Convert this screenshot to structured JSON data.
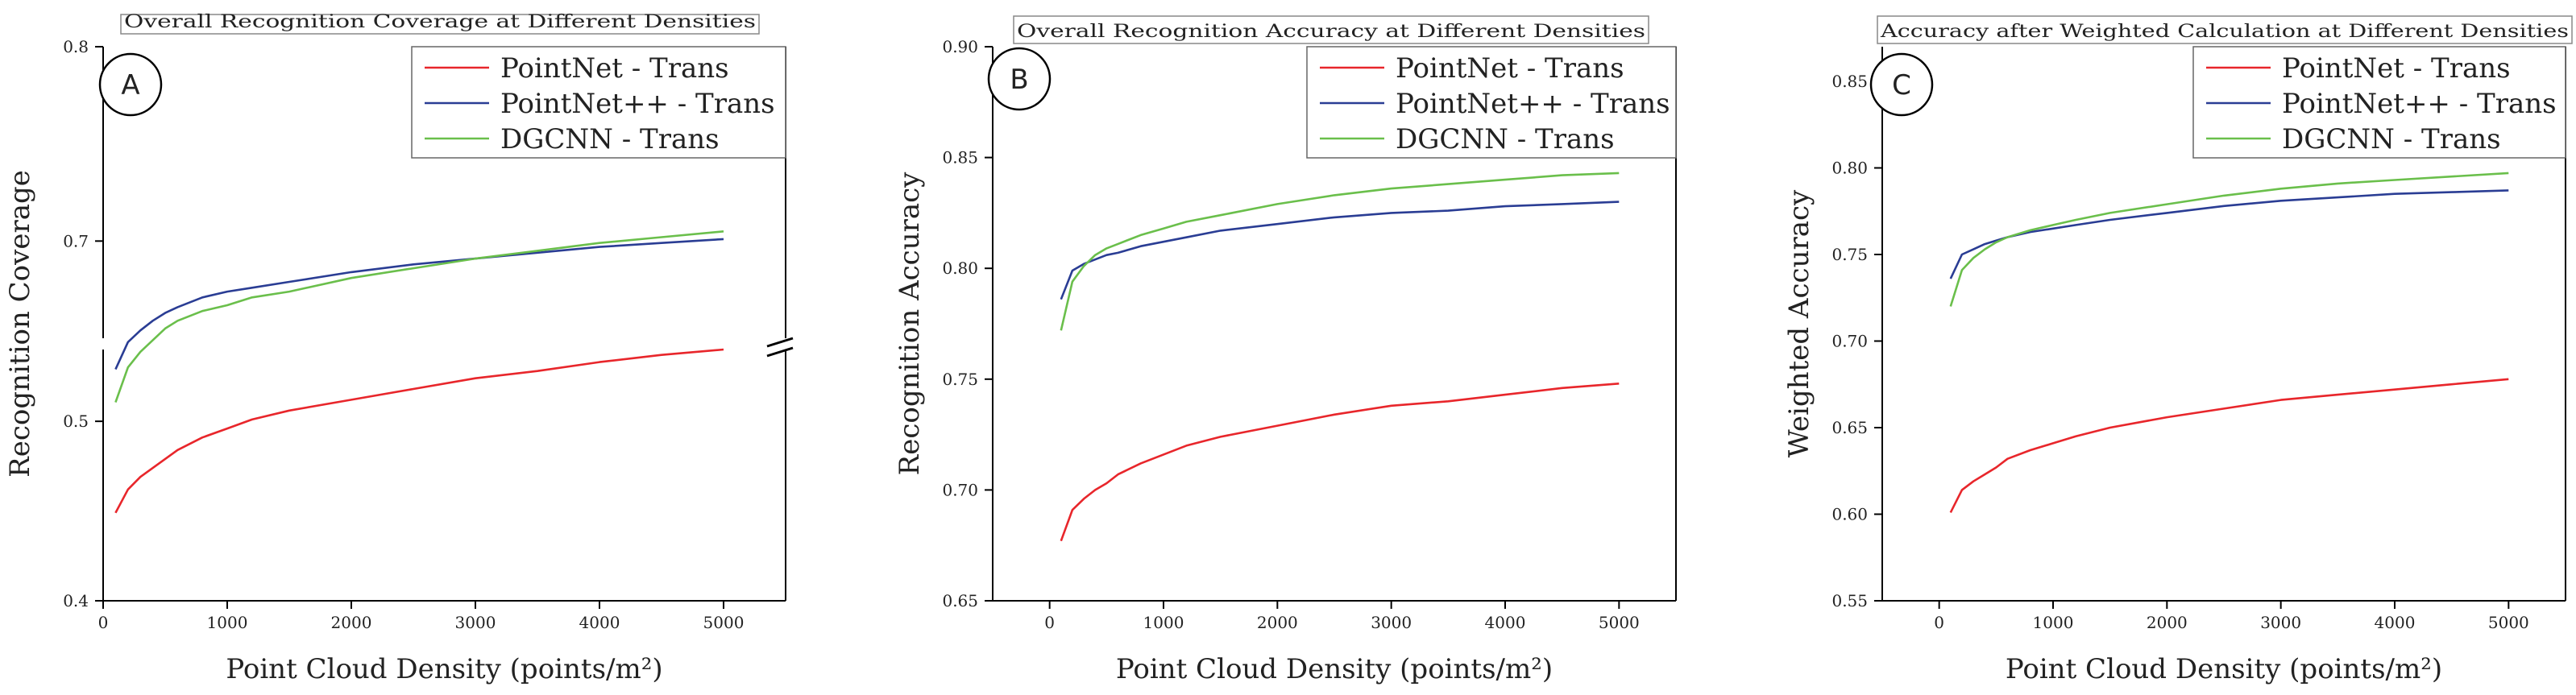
{
  "chart_data": [
    {
      "type": "line",
      "panel_letter": "A",
      "title": "Overall Recognition Coverage at Different Densities",
      "xlabel": "Point Cloud Density (points/m²)",
      "ylabel": "Recognition Coverage",
      "xlim": [
        0,
        5500
      ],
      "xticks": [
        0,
        1000,
        2000,
        3000,
        4000,
        5000
      ],
      "ylim": [
        0.4,
        0.8
      ],
      "axis_break": [
        0.54,
        0.65
      ],
      "yticks": [
        0.4,
        0.5,
        0.7,
        0.8
      ],
      "ytick_labels": [
        "0.4",
        "0.5",
        "0.7",
        "0.8"
      ],
      "legend_position": "top-right",
      "x": [
        100,
        200,
        300,
        400,
        500,
        600,
        800,
        1000,
        1200,
        1500,
        2000,
        2500,
        3000,
        3500,
        4000,
        4500,
        5000
      ],
      "series": [
        {
          "name": "PointNet - Trans",
          "color": "#e8262b",
          "values": [
            0.449,
            0.462,
            0.469,
            0.474,
            0.479,
            0.484,
            0.491,
            0.496,
            0.501,
            0.506,
            0.512,
            0.518,
            0.524,
            0.528,
            0.533,
            0.537,
            0.54
          ]
        },
        {
          "name": "PointNet++ - Trans",
          "color": "#2a3d94",
          "values": [
            0.634,
            0.648,
            0.654,
            0.659,
            0.663,
            0.666,
            0.671,
            0.674,
            0.676,
            0.679,
            0.684,
            0.688,
            0.691,
            0.694,
            0.697,
            0.699,
            0.701
          ]
        },
        {
          "name": "DGCNN - Trans",
          "color": "#6abf4b",
          "values": [
            0.617,
            0.635,
            0.643,
            0.649,
            0.655,
            0.659,
            0.664,
            0.667,
            0.671,
            0.674,
            0.681,
            0.686,
            0.691,
            0.695,
            0.699,
            0.702,
            0.705
          ]
        }
      ]
    },
    {
      "type": "line",
      "panel_letter": "B",
      "title": "Overall Recognition Accuracy at Different Densities",
      "xlabel": "Point Cloud Density (points/m²)",
      "ylabel": "Recognition Accuracy",
      "xlim": [
        -500,
        5500
      ],
      "xticks": [
        0,
        1000,
        2000,
        3000,
        4000,
        5000
      ],
      "ylim": [
        0.65,
        0.9
      ],
      "yticks": [
        0.65,
        0.7,
        0.75,
        0.8,
        0.85,
        0.9
      ],
      "ytick_labels": [
        "0.65",
        "0.70",
        "0.75",
        "0.80",
        "0.85",
        "0.90"
      ],
      "legend_position": "top-right",
      "x": [
        100,
        200,
        300,
        400,
        500,
        600,
        800,
        1000,
        1200,
        1500,
        2000,
        2500,
        3000,
        3500,
        4000,
        4500,
        5000
      ],
      "series": [
        {
          "name": "PointNet - Trans",
          "color": "#e8262b",
          "values": [
            0.677,
            0.691,
            0.696,
            0.7,
            0.703,
            0.707,
            0.712,
            0.716,
            0.72,
            0.724,
            0.729,
            0.734,
            0.738,
            0.74,
            0.743,
            0.746,
            0.748
          ]
        },
        {
          "name": "PointNet++ - Trans",
          "color": "#2a3d94",
          "values": [
            0.786,
            0.799,
            0.802,
            0.804,
            0.806,
            0.807,
            0.81,
            0.812,
            0.814,
            0.817,
            0.82,
            0.823,
            0.825,
            0.826,
            0.828,
            0.829,
            0.83
          ]
        },
        {
          "name": "DGCNN - Trans",
          "color": "#6abf4b",
          "values": [
            0.772,
            0.794,
            0.801,
            0.806,
            0.809,
            0.811,
            0.815,
            0.818,
            0.821,
            0.824,
            0.829,
            0.833,
            0.836,
            0.838,
            0.84,
            0.842,
            0.843
          ]
        }
      ]
    },
    {
      "type": "line",
      "panel_letter": "C",
      "title": "Accuracy after Weighted Calculation at Different Densities",
      "xlabel": "Point Cloud Density (points/m²)",
      "ylabel": "Weighted Accuracy",
      "xlim": [
        -500,
        5500
      ],
      "xticks": [
        0,
        1000,
        2000,
        3000,
        4000,
        5000
      ],
      "ylim": [
        0.55,
        0.87
      ],
      "yticks": [
        0.55,
        0.6,
        0.65,
        0.7,
        0.75,
        0.8,
        0.85
      ],
      "ytick_labels": [
        "0.55",
        "0.60",
        "0.65",
        "0.70",
        "0.75",
        "0.80",
        "0.85"
      ],
      "legend_position": "top-right",
      "x": [
        100,
        200,
        300,
        400,
        500,
        600,
        800,
        1000,
        1200,
        1500,
        2000,
        2500,
        3000,
        3500,
        4000,
        4500,
        5000
      ],
      "series": [
        {
          "name": "PointNet - Trans",
          "color": "#e8262b",
          "values": [
            0.601,
            0.614,
            0.619,
            0.623,
            0.627,
            0.632,
            0.637,
            0.641,
            0.645,
            0.65,
            0.656,
            0.661,
            0.666,
            0.669,
            0.672,
            0.675,
            0.678
          ]
        },
        {
          "name": "PointNet++ - Trans",
          "color": "#2a3d94",
          "values": [
            0.736,
            0.75,
            0.753,
            0.756,
            0.758,
            0.76,
            0.763,
            0.765,
            0.767,
            0.77,
            0.774,
            0.778,
            0.781,
            0.783,
            0.785,
            0.786,
            0.787
          ]
        },
        {
          "name": "DGCNN - Trans",
          "color": "#6abf4b",
          "values": [
            0.72,
            0.741,
            0.748,
            0.753,
            0.757,
            0.76,
            0.764,
            0.767,
            0.77,
            0.774,
            0.779,
            0.784,
            0.788,
            0.791,
            0.793,
            0.795,
            0.797
          ]
        }
      ]
    }
  ]
}
